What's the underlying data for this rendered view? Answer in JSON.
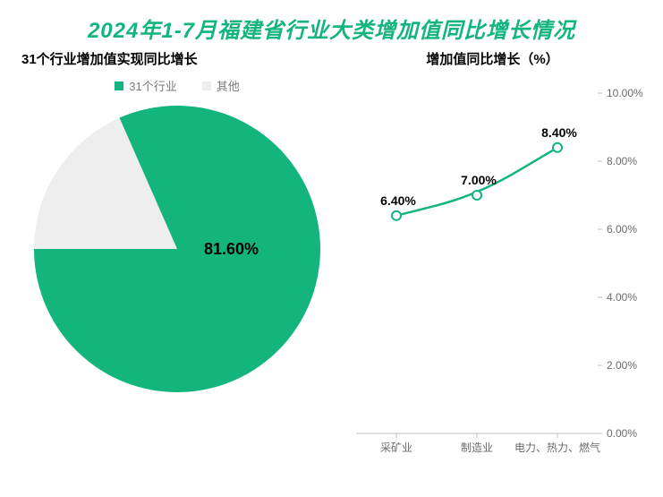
{
  "title": {
    "text": "2024年1-7月福建省行业大类增加值同比增长情况",
    "color": "#13b57c",
    "fontsize": 24
  },
  "pie_chart": {
    "type": "pie",
    "subtitle": "31个行业增加值实现同比增长",
    "subtitle_fontsize": 15,
    "legend": [
      {
        "label": "31个行业",
        "color": "#13b57c"
      },
      {
        "label": "其他",
        "color": "#eeeeee"
      }
    ],
    "legend_fontsize": 13,
    "slices": [
      {
        "value": 81.6,
        "color": "#13b57c"
      },
      {
        "value": 18.4,
        "color": "#eeeeee"
      }
    ],
    "center_label": "81.60%",
    "center_label_fontsize": 18,
    "radius": 160,
    "background_color": "#ffffff"
  },
  "line_chart": {
    "type": "line",
    "subtitle": "增加值同比增长（%）",
    "subtitle_fontsize": 15,
    "categories": [
      "采矿业",
      "制造业",
      "电力、热力、燃气"
    ],
    "values": [
      6.4,
      7.0,
      8.4
    ],
    "value_labels": [
      "6.40%",
      "7.00%",
      "8.40%"
    ],
    "value_label_fontsize": 14,
    "ylim": [
      0,
      10
    ],
    "ytick_step": 2,
    "ytick_labels": [
      "0.00%",
      "2.00%",
      "4.00%",
      "6.00%",
      "8.00%",
      "10.00%"
    ],
    "line_color": "#13b57c",
    "line_width": 2.5,
    "marker_fill": "#ffffff",
    "marker_stroke": "#13b57c",
    "marker_radius": 5,
    "axis_color": "#bfbfbf",
    "tick_label_color": "#6b6b6b",
    "tick_label_fontsize": 12,
    "background_color": "#ffffff"
  }
}
